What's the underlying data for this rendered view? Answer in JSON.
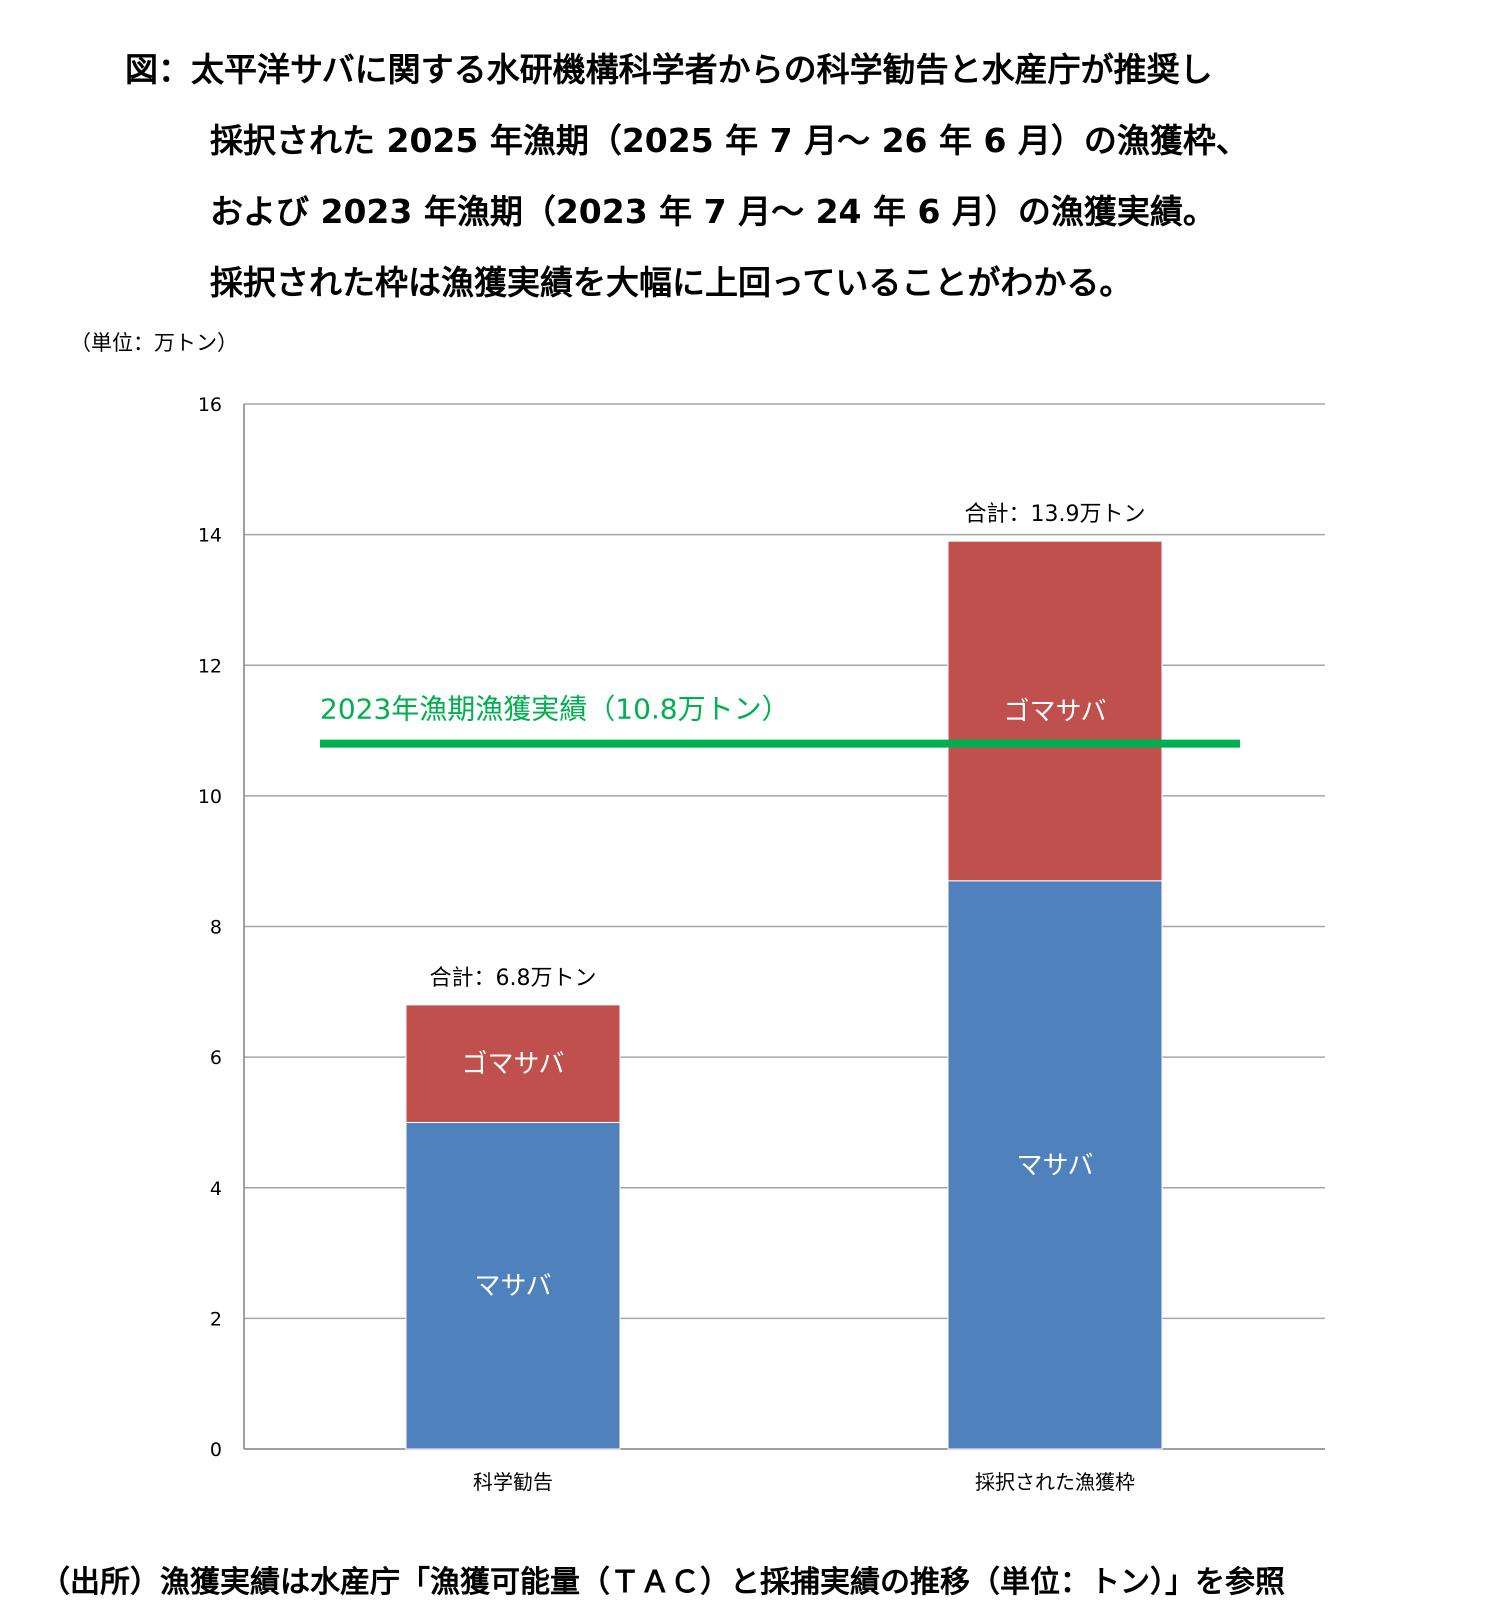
{
  "title_lines": [
    "図：太平洋サバに関する水研機構科学者からの科学勧告と水産庁が推奨し",
    "採択された 2025 年漁期（2025 年 7 月～ 26 年 6 月）の漁獲枠、",
    "および 2023 年漁期（2023 年 7 月～ 24 年 6 月）の漁獲実績。",
    "採択された枠は漁獲実績を大幅に上回っていることがわかる。"
  ],
  "source_note": "（出所）漁獲実績は水産庁「漁獲可能量（ＴＡＣ）と採捕実績の推移（単位：トン）」を参照",
  "colors": {
    "masaba": "#4f81bd",
    "gomasaba": "#c0504d",
    "reference_line": "#00b050",
    "gridline": "#a6a6a6",
    "axis": "#808080"
  },
  "chart_data": {
    "type": "bar",
    "stacked": true,
    "unit_label": "（単位：万トン）",
    "categories": [
      "科学勧告",
      "採択された漁獲枠"
    ],
    "series": [
      {
        "name": "マサバ",
        "values": [
          5.0,
          8.7
        ]
      },
      {
        "name": "ゴマサバ",
        "values": [
          1.8,
          5.2
        ]
      }
    ],
    "totals": [
      "合計：6.8万トン",
      "合計：13.9万トン"
    ],
    "ylim": [
      0,
      16
    ],
    "yticks": [
      0,
      2,
      4,
      6,
      8,
      10,
      12,
      14,
      16
    ],
    "grid": true,
    "reference_line": {
      "value": 10.8,
      "label": "2023年漁期漁獲実績（10.8万トン）"
    },
    "xlabel": "",
    "ylabel": ""
  }
}
